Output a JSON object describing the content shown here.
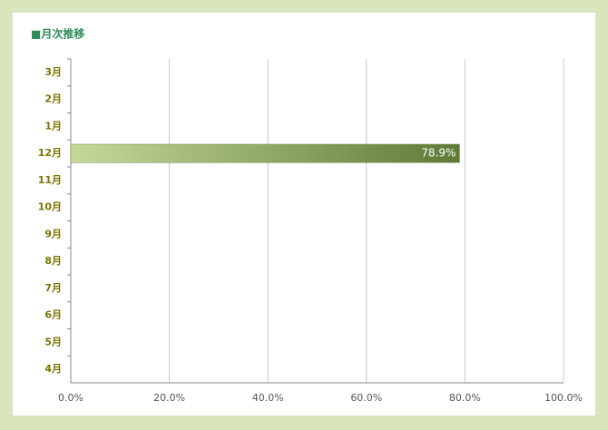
{
  "chart_data": {
    "type": "bar",
    "orientation": "horizontal",
    "title": "■月次推移",
    "categories": [
      "3月",
      "2月",
      "1月",
      "12月",
      "11月",
      "10月",
      "9月",
      "8月",
      "7月",
      "6月",
      "5月",
      "4月"
    ],
    "values": [
      null,
      null,
      null,
      78.9,
      null,
      null,
      null,
      null,
      null,
      null,
      null,
      null
    ],
    "value_labels": [
      null,
      null,
      null,
      "78.9%",
      null,
      null,
      null,
      null,
      null,
      null,
      null,
      null
    ],
    "color": "#6b8540",
    "xlim": [
      0,
      100
    ],
    "xticks": [
      {
        "value": 0,
        "label": "0.0%"
      },
      {
        "value": 20,
        "label": "20.0%"
      },
      {
        "value": 40,
        "label": "40.0%"
      },
      {
        "value": 60,
        "label": "60.0%"
      },
      {
        "value": 80,
        "label": "80.0%"
      },
      {
        "value": 100,
        "label": "100.0%"
      }
    ],
    "grid": true
  }
}
